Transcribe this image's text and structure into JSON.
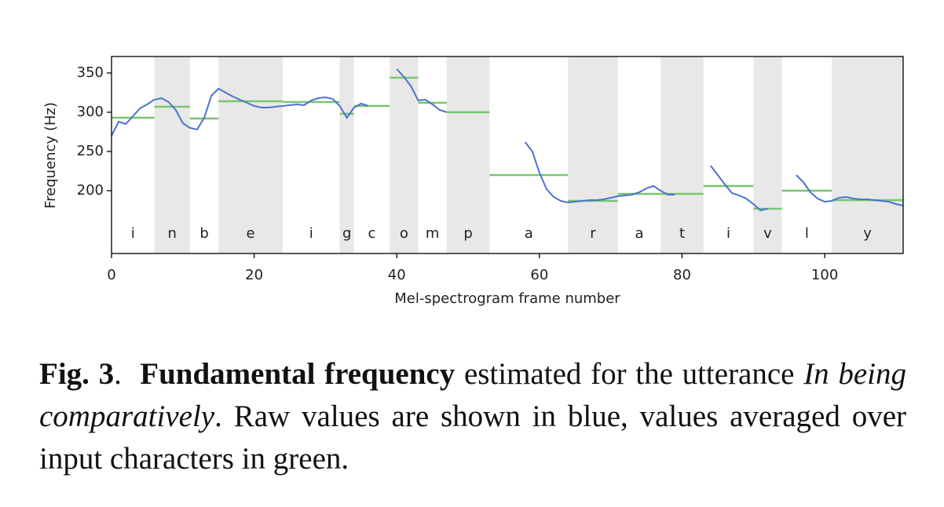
{
  "chart_data": {
    "type": "line",
    "xlabel": "Mel-spectrogram frame number",
    "ylabel": "Frequency (Hz)",
    "xlim": [
      0,
      111
    ],
    "ylim": [
      120,
      371
    ],
    "xticks": [
      0,
      20,
      40,
      60,
      80,
      100
    ],
    "yticks": [
      200,
      250,
      300,
      350
    ],
    "x": [
      0,
      1,
      2,
      3,
      4,
      5,
      6,
      7,
      8,
      9,
      10,
      11,
      12,
      13,
      14,
      15,
      16,
      17,
      18,
      19,
      20,
      21,
      22,
      23,
      24,
      25,
      26,
      27,
      28,
      29,
      30,
      31,
      32,
      33,
      34,
      35,
      36,
      37,
      38,
      39,
      40,
      41,
      42,
      43,
      44,
      45,
      46,
      47,
      48,
      49,
      50,
      51,
      52,
      53,
      54,
      55,
      56,
      57,
      58,
      59,
      60,
      61,
      62,
      63,
      64,
      65,
      66,
      67,
      68,
      69,
      70,
      71,
      72,
      73,
      74,
      75,
      76,
      77,
      78,
      79,
      80,
      81,
      82,
      83,
      84,
      85,
      86,
      87,
      88,
      89,
      90,
      91,
      92,
      93,
      94,
      95,
      96,
      97,
      98,
      99,
      100,
      101,
      102,
      103,
      104,
      105,
      106,
      107,
      108,
      109,
      110,
      111
    ],
    "series": [
      {
        "color": "#4c72d0",
        "values": [
          270,
          288,
          285,
          295,
          305,
          310,
          316,
          318,
          313,
          303,
          286,
          280,
          278,
          293,
          321,
          330,
          325,
          320,
          316,
          312,
          308,
          306,
          306,
          307,
          308,
          309,
          310,
          309,
          315,
          318,
          319,
          317,
          308,
          293,
          306,
          311,
          308,
          null,
          null,
          null,
          355,
          345,
          333,
          315,
          316,
          310,
          303,
          300,
          null,
          null,
          null,
          null,
          null,
          null,
          null,
          null,
          null,
          null,
          262,
          250,
          223,
          202,
          192,
          187,
          185,
          186,
          187,
          188,
          188,
          189,
          191,
          193,
          194,
          195,
          198,
          203,
          206,
          200,
          195,
          195,
          null,
          null,
          null,
          null,
          232,
          220,
          208,
          197,
          194,
          190,
          183,
          175,
          177,
          null,
          null,
          null,
          220,
          211,
          198,
          190,
          186,
          187,
          191,
          192,
          190,
          189,
          189,
          188,
          187,
          186,
          183,
          181
        ]
      }
    ],
    "segments_color": "#77c66e",
    "band_color": "#e8e8e8",
    "segments": [
      {
        "label": "i",
        "start": 0,
        "end": 6,
        "mean": 293
      },
      {
        "label": "n",
        "start": 6,
        "end": 11,
        "mean": 307
      },
      {
        "label": "b",
        "start": 11,
        "end": 15,
        "mean": 292
      },
      {
        "label": "e",
        "start": 15,
        "end": 24,
        "mean": 314
      },
      {
        "label": "i",
        "start": 24,
        "end": 32,
        "mean": 313
      },
      {
        "label": "g",
        "start": 32,
        "end": 34,
        "mean": 298
      },
      {
        "label": "c",
        "start": 34,
        "end": 39,
        "mean": 308
      },
      {
        "label": "o",
        "start": 39,
        "end": 43,
        "mean": 344
      },
      {
        "label": "m",
        "start": 43,
        "end": 47,
        "mean": 312
      },
      {
        "label": "p",
        "start": 47,
        "end": 53,
        "mean": 300
      },
      {
        "label": "a",
        "start": 53,
        "end": 64,
        "mean": 220
      },
      {
        "label": "r",
        "start": 64,
        "end": 71,
        "mean": 187
      },
      {
        "label": "a",
        "start": 71,
        "end": 77,
        "mean": 196
      },
      {
        "label": "t",
        "start": 77,
        "end": 83,
        "mean": 196
      },
      {
        "label": "i",
        "start": 83,
        "end": 90,
        "mean": 206
      },
      {
        "label": "v",
        "start": 90,
        "end": 94,
        "mean": 177
      },
      {
        "label": "l",
        "start": 94,
        "end": 101,
        "mean": 200
      },
      {
        "label": "y",
        "start": 101,
        "end": 111,
        "mean": 188
      }
    ]
  },
  "caption": [
    {
      "text": "Fig. 3",
      "style": "bold"
    },
    {
      "text": ".  "
    },
    {
      "text": "Fundamental frequency",
      "style": "bold"
    },
    {
      "text": " estimated for the utterance "
    },
    {
      "text": "In being comparatively",
      "style": "italic"
    },
    {
      "text": ". Raw values are shown in blue, values averaged over input characters in green."
    }
  ]
}
